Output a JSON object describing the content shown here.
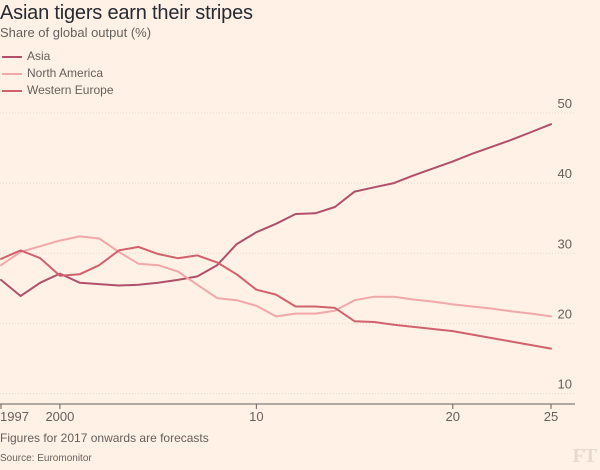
{
  "colors": {
    "background": "#fff1e5",
    "grid": "#e7d8cb",
    "axis": "#66605c",
    "asia": "#b0506a",
    "north_america": "#f2a7aa",
    "western_europe": "#d2616e"
  },
  "chart_data": {
    "type": "line",
    "title": "Asian tigers earn their stripes",
    "subtitle": "Share of global output (%)",
    "note": "Figures for 2017 onwards are forecasts",
    "source": "Source: Euromonitor",
    "logo": "FT",
    "x_tick_labels": [
      "1997",
      "2000",
      "10",
      "20",
      "25"
    ],
    "x_tick_values": [
      1997,
      2000,
      2010,
      2020,
      2025
    ],
    "y_tick_labels": [
      "10",
      "20",
      "30",
      "40",
      "50"
    ],
    "y_tick_values": [
      10,
      20,
      30,
      40,
      50
    ],
    "xlim": [
      1997,
      2025
    ],
    "ylim": [
      8.5,
      52
    ],
    "grid": true,
    "legend_position": "top-left",
    "x": [
      1997,
      1998,
      1999,
      2000,
      2001,
      2002,
      2003,
      2004,
      2005,
      2006,
      2007,
      2008,
      2009,
      2010,
      2011,
      2012,
      2013,
      2014,
      2015,
      2016,
      2017,
      2018,
      2019,
      2020,
      2021,
      2022,
      2023,
      2024,
      2025
    ],
    "series": [
      {
        "name": "Asia",
        "color_key": "asia",
        "values": [
          26.2,
          23.9,
          25.8,
          27.1,
          25.8,
          25.6,
          25.4,
          25.5,
          25.8,
          26.2,
          26.7,
          28.3,
          31.3,
          33.0,
          34.2,
          35.6,
          35.7,
          36.6,
          38.8,
          39.4,
          40.0,
          41.1,
          42.1,
          43.1,
          44.2,
          45.2,
          46.2,
          47.3,
          48.4
        ]
      },
      {
        "name": "North America",
        "color_key": "north_america",
        "values": [
          28.3,
          30.2,
          31.0,
          31.8,
          32.4,
          32.1,
          30.2,
          28.5,
          28.3,
          27.4,
          25.5,
          23.6,
          23.3,
          22.5,
          21.0,
          21.4,
          21.4,
          21.8,
          23.3,
          23.8,
          23.8,
          23.4,
          23.1,
          22.7,
          22.4,
          22.1,
          21.7,
          21.4,
          21.0
        ]
      },
      {
        "name": "Western Europe",
        "color_key": "western_europe",
        "values": [
          29.2,
          30.4,
          29.3,
          26.8,
          27.0,
          28.3,
          30.4,
          30.9,
          29.9,
          29.3,
          29.7,
          28.7,
          27.0,
          24.8,
          24.1,
          22.4,
          22.4,
          22.2,
          20.3,
          20.2,
          19.8,
          19.5,
          19.2,
          18.9,
          18.4,
          17.9,
          17.4,
          16.9,
          16.4
        ]
      }
    ]
  }
}
